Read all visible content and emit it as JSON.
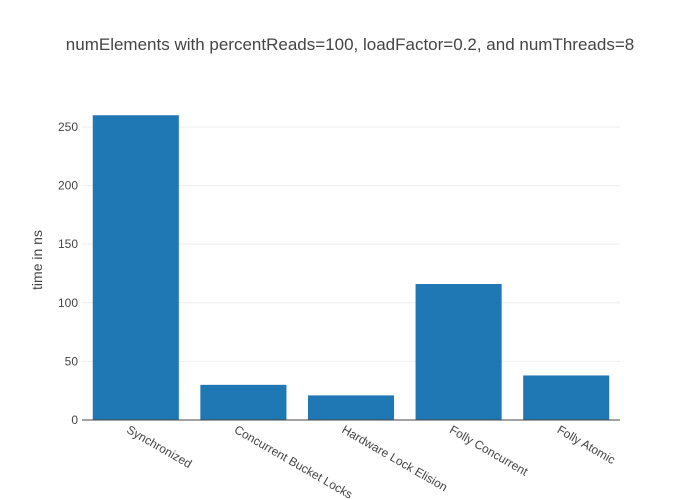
{
  "chart_data": {
    "type": "bar",
    "title": "numElements with percentReads=100, loadFactor=0.2, and numThreads=8",
    "xlabel": "",
    "ylabel": "time in ns",
    "categories": [
      "Synchronized",
      "Concurrent Bucket Locks",
      "Hardware Lock Elision",
      "Folly Concurrent",
      "Folly Atomic"
    ],
    "values": [
      260,
      30,
      21,
      116,
      38
    ],
    "ylim": [
      0,
      273
    ],
    "yticks": [
      0,
      50,
      100,
      150,
      200,
      250
    ],
    "grid": true,
    "bar_color": "#1f77b4"
  }
}
